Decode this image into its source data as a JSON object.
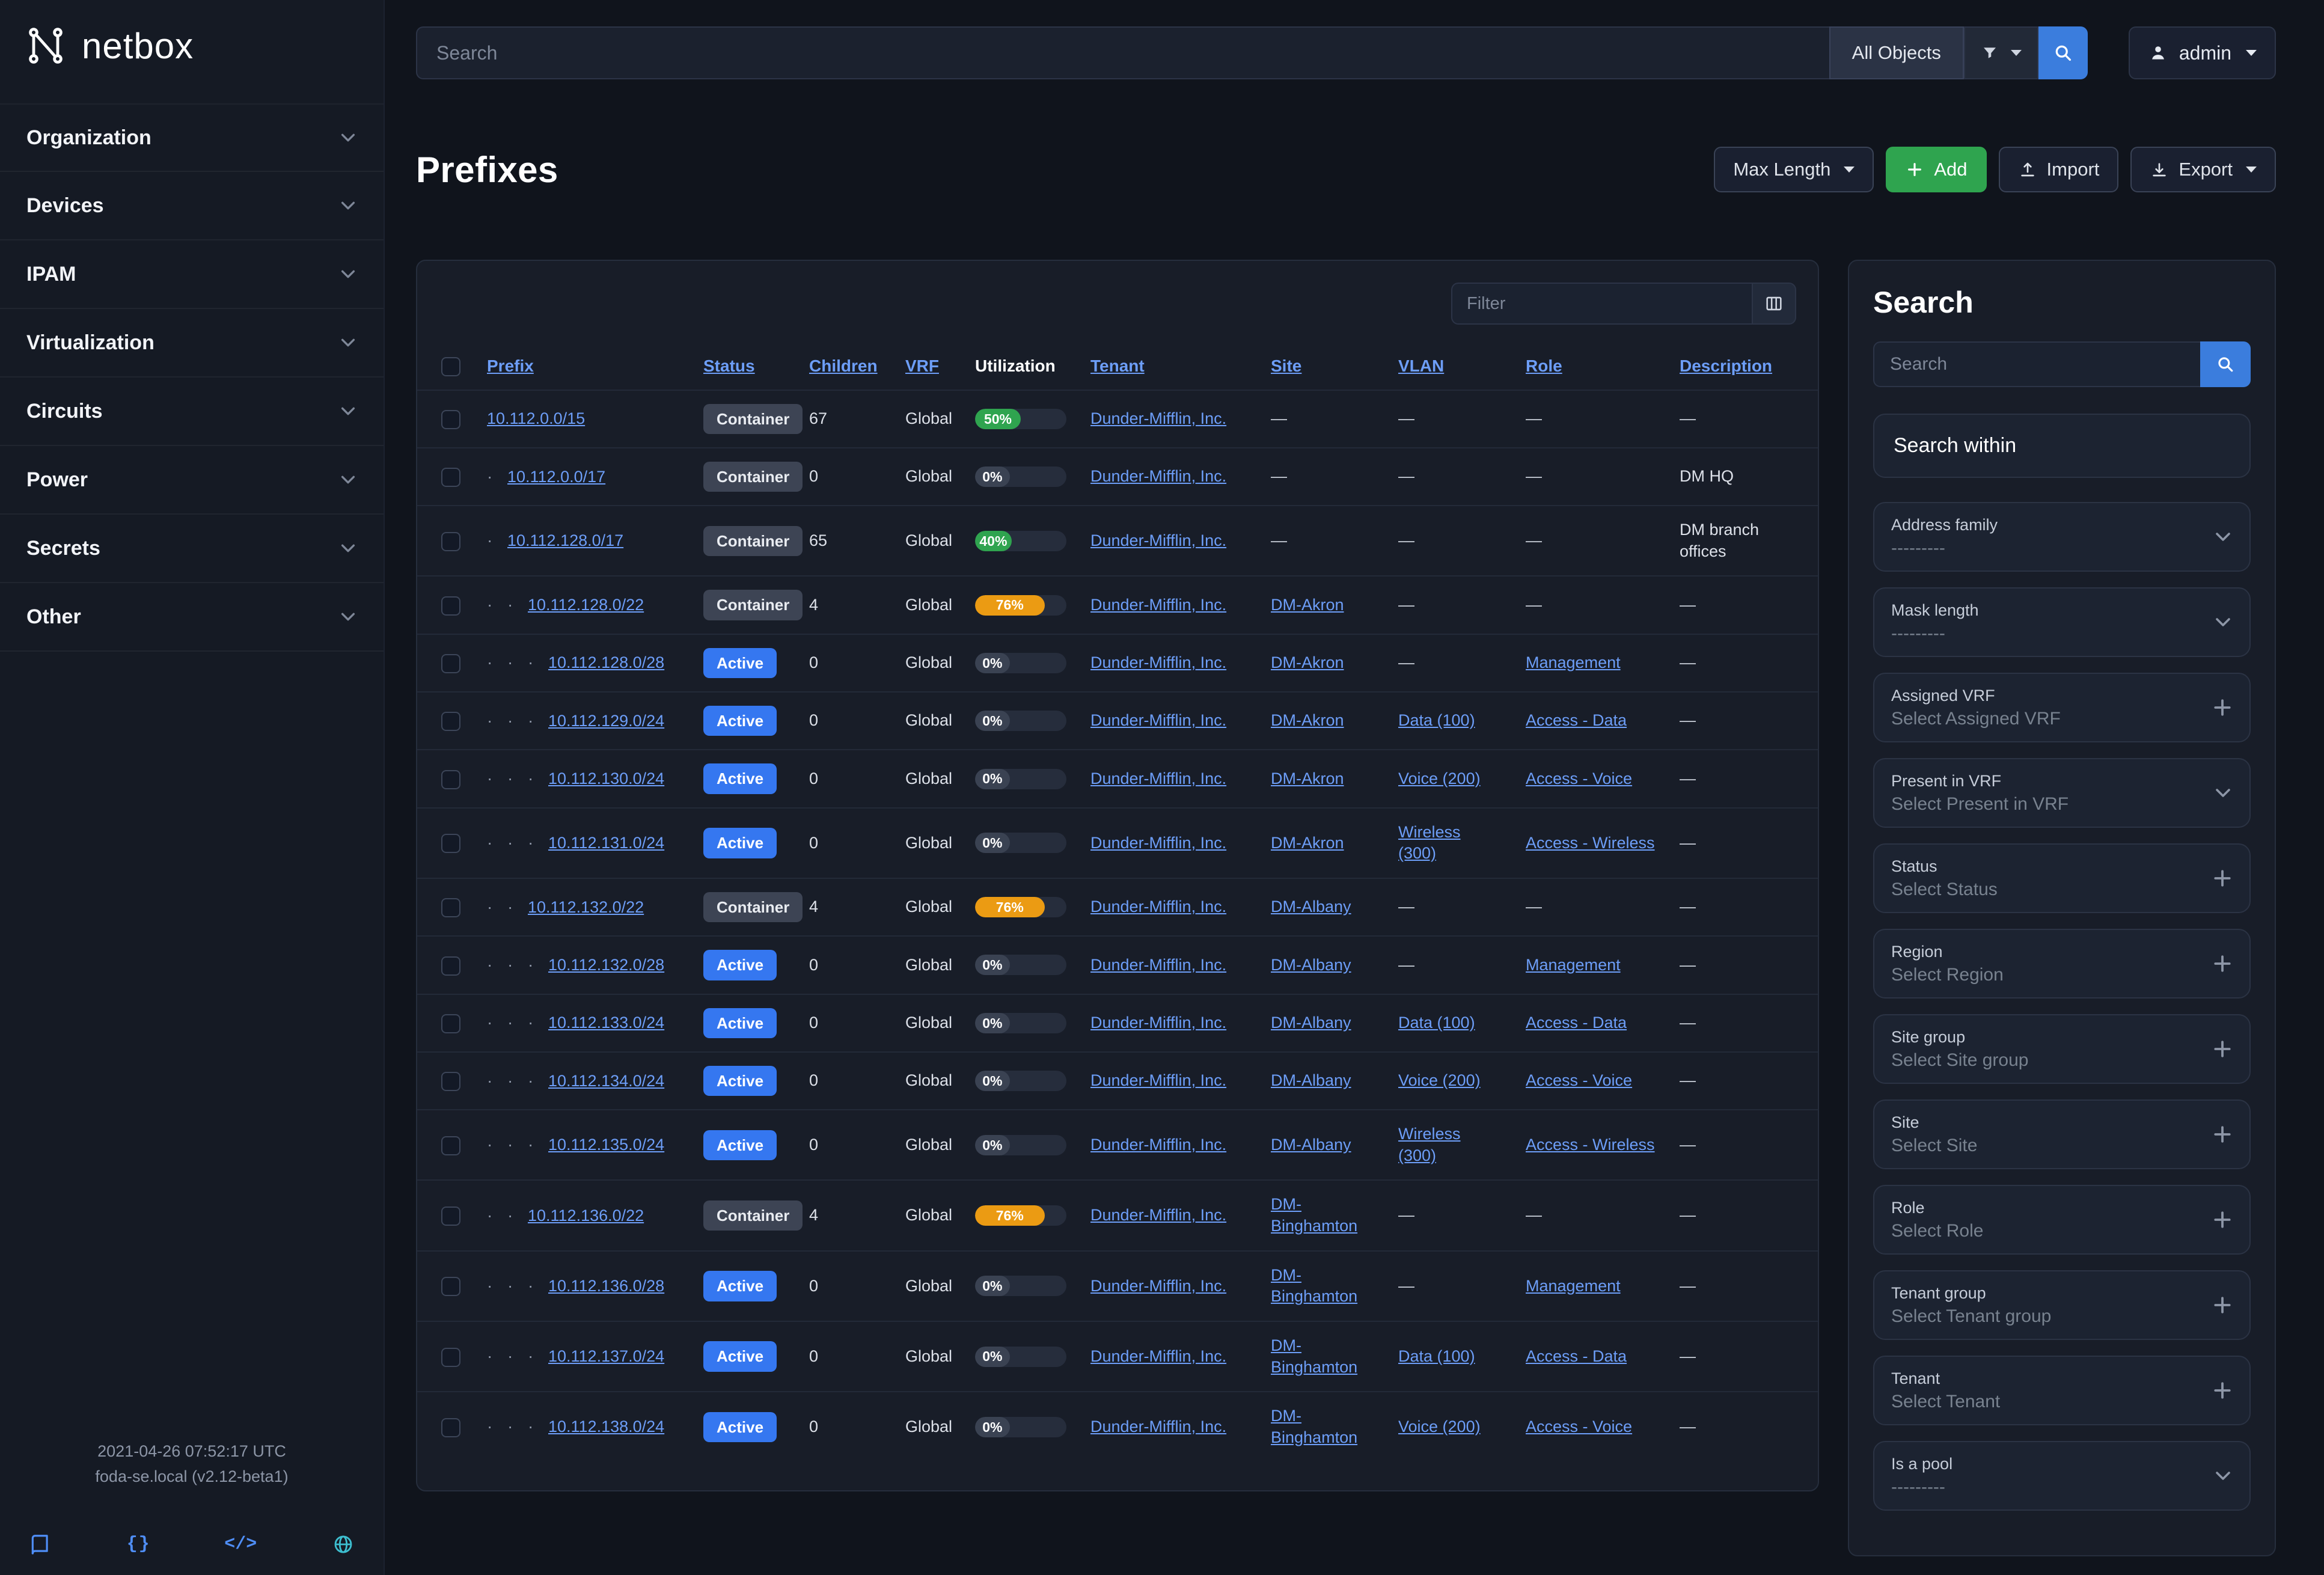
{
  "colors": {
    "accent_blue": "#3b7ddd",
    "link": "#6d9ef8",
    "green": "#2fa44f",
    "orange": "#eb9b13",
    "badge_blue": "#3577f0",
    "badge_gray": "#3d4454"
  },
  "sidebar": {
    "brand": "netbox",
    "items": [
      {
        "label": "Organization"
      },
      {
        "label": "Devices"
      },
      {
        "label": "IPAM"
      },
      {
        "label": "Virtualization"
      },
      {
        "label": "Circuits"
      },
      {
        "label": "Power"
      },
      {
        "label": "Secrets"
      },
      {
        "label": "Other"
      }
    ],
    "footer": {
      "timestamp": "2021-04-26 07:52:17 UTC",
      "version": "foda-se.local (v2.12-beta1)"
    }
  },
  "topbar": {
    "search_placeholder": "Search",
    "scope_label": "All Objects",
    "user_label": "admin"
  },
  "page": {
    "title": "Prefixes",
    "actions": {
      "max_length": "Max Length",
      "add": "Add",
      "import": "Import",
      "export": "Export"
    }
  },
  "table": {
    "filter_placeholder": "Filter",
    "columns": [
      {
        "key": "prefix",
        "label": "Prefix",
        "sortable": true
      },
      {
        "key": "status",
        "label": "Status",
        "sortable": true
      },
      {
        "key": "children",
        "label": "Children",
        "sortable": true
      },
      {
        "key": "vrf",
        "label": "VRF",
        "sortable": true
      },
      {
        "key": "util",
        "label": "Utilization",
        "sortable": false
      },
      {
        "key": "tenant",
        "label": "Tenant",
        "sortable": true
      },
      {
        "key": "site",
        "label": "Site",
        "sortable": true
      },
      {
        "key": "vlan",
        "label": "VLAN",
        "sortable": true
      },
      {
        "key": "role",
        "label": "Role",
        "sortable": true
      },
      {
        "key": "desc",
        "label": "Description",
        "sortable": true
      }
    ],
    "rows": [
      {
        "depth": 0,
        "prefix": "10.112.0.0/15",
        "status": "Container",
        "children": "67",
        "vrf": "Global",
        "util": {
          "label": "50%",
          "width": 50,
          "color": "green"
        },
        "tenant": "Dunder-Mifflin, Inc.",
        "site": "—",
        "vlan": "—",
        "role": "—",
        "desc": "—"
      },
      {
        "depth": 1,
        "prefix": "10.112.0.0/17",
        "status": "Container",
        "children": "0",
        "vrf": "Global",
        "util": {
          "label": "0%",
          "width": 38,
          "color": "gray"
        },
        "tenant": "Dunder-Mifflin, Inc.",
        "site": "—",
        "vlan": "—",
        "role": "—",
        "desc": "DM HQ"
      },
      {
        "depth": 1,
        "prefix": "10.112.128.0/17",
        "status": "Container",
        "children": "65",
        "vrf": "Global",
        "util": {
          "label": "40%",
          "width": 40,
          "color": "green"
        },
        "tenant": "Dunder-Mifflin, Inc.",
        "site": "—",
        "vlan": "—",
        "role": "—",
        "desc": "DM branch offices"
      },
      {
        "depth": 2,
        "prefix": "10.112.128.0/22",
        "status": "Container",
        "children": "4",
        "vrf": "Global",
        "util": {
          "label": "76%",
          "width": 76,
          "color": "orange"
        },
        "tenant": "Dunder-Mifflin, Inc.",
        "site": "DM-Akron",
        "vlan": "—",
        "role": "—",
        "desc": "—"
      },
      {
        "depth": 3,
        "prefix": "10.112.128.0/28",
        "status": "Active",
        "children": "0",
        "vrf": "Global",
        "util": {
          "label": "0%",
          "width": 38,
          "color": "gray"
        },
        "tenant": "Dunder-Mifflin, Inc.",
        "site": "DM-Akron",
        "vlan": "—",
        "role": "Management",
        "desc": "—"
      },
      {
        "depth": 3,
        "prefix": "10.112.129.0/24",
        "status": "Active",
        "children": "0",
        "vrf": "Global",
        "util": {
          "label": "0%",
          "width": 38,
          "color": "gray"
        },
        "tenant": "Dunder-Mifflin, Inc.",
        "site": "DM-Akron",
        "vlan": "Data (100)",
        "role": "Access - Data",
        "desc": "—"
      },
      {
        "depth": 3,
        "prefix": "10.112.130.0/24",
        "status": "Active",
        "children": "0",
        "vrf": "Global",
        "util": {
          "label": "0%",
          "width": 38,
          "color": "gray"
        },
        "tenant": "Dunder-Mifflin, Inc.",
        "site": "DM-Akron",
        "vlan": "Voice (200)",
        "role": "Access - Voice",
        "desc": "—"
      },
      {
        "depth": 3,
        "prefix": "10.112.131.0/24",
        "status": "Active",
        "children": "0",
        "vrf": "Global",
        "util": {
          "label": "0%",
          "width": 38,
          "color": "gray"
        },
        "tenant": "Dunder-Mifflin, Inc.",
        "site": "DM-Akron",
        "vlan": "Wireless (300)",
        "role": "Access - Wireless",
        "desc": "—"
      },
      {
        "depth": 2,
        "prefix": "10.112.132.0/22",
        "status": "Container",
        "children": "4",
        "vrf": "Global",
        "util": {
          "label": "76%",
          "width": 76,
          "color": "orange"
        },
        "tenant": "Dunder-Mifflin, Inc.",
        "site": "DM-Albany",
        "vlan": "—",
        "role": "—",
        "desc": "—"
      },
      {
        "depth": 3,
        "prefix": "10.112.132.0/28",
        "status": "Active",
        "children": "0",
        "vrf": "Global",
        "util": {
          "label": "0%",
          "width": 38,
          "color": "gray"
        },
        "tenant": "Dunder-Mifflin, Inc.",
        "site": "DM-Albany",
        "vlan": "—",
        "role": "Management",
        "desc": "—"
      },
      {
        "depth": 3,
        "prefix": "10.112.133.0/24",
        "status": "Active",
        "children": "0",
        "vrf": "Global",
        "util": {
          "label": "0%",
          "width": 38,
          "color": "gray"
        },
        "tenant": "Dunder-Mifflin, Inc.",
        "site": "DM-Albany",
        "vlan": "Data (100)",
        "role": "Access - Data",
        "desc": "—"
      },
      {
        "depth": 3,
        "prefix": "10.112.134.0/24",
        "status": "Active",
        "children": "0",
        "vrf": "Global",
        "util": {
          "label": "0%",
          "width": 38,
          "color": "gray"
        },
        "tenant": "Dunder-Mifflin, Inc.",
        "site": "DM-Albany",
        "vlan": "Voice (200)",
        "role": "Access - Voice",
        "desc": "—"
      },
      {
        "depth": 3,
        "prefix": "10.112.135.0/24",
        "status": "Active",
        "children": "0",
        "vrf": "Global",
        "util": {
          "label": "0%",
          "width": 38,
          "color": "gray"
        },
        "tenant": "Dunder-Mifflin, Inc.",
        "site": "DM-Albany",
        "vlan": "Wireless (300)",
        "role": "Access - Wireless",
        "desc": "—"
      },
      {
        "depth": 2,
        "prefix": "10.112.136.0/22",
        "status": "Container",
        "children": "4",
        "vrf": "Global",
        "util": {
          "label": "76%",
          "width": 76,
          "color": "orange"
        },
        "tenant": "Dunder-Mifflin, Inc.",
        "site": "DM-Binghamton",
        "vlan": "—",
        "role": "—",
        "desc": "—"
      },
      {
        "depth": 3,
        "prefix": "10.112.136.0/28",
        "status": "Active",
        "children": "0",
        "vrf": "Global",
        "util": {
          "label": "0%",
          "width": 38,
          "color": "gray"
        },
        "tenant": "Dunder-Mifflin, Inc.",
        "site": "DM-Binghamton",
        "vlan": "—",
        "role": "Management",
        "desc": "—"
      },
      {
        "depth": 3,
        "prefix": "10.112.137.0/24",
        "status": "Active",
        "children": "0",
        "vrf": "Global",
        "util": {
          "label": "0%",
          "width": 38,
          "color": "gray"
        },
        "tenant": "Dunder-Mifflin, Inc.",
        "site": "DM-Binghamton",
        "vlan": "Data (100)",
        "role": "Access - Data",
        "desc": "—"
      },
      {
        "depth": 3,
        "prefix": "10.112.138.0/24",
        "status": "Active",
        "children": "0",
        "vrf": "Global",
        "util": {
          "label": "0%",
          "width": 38,
          "color": "gray"
        },
        "tenant": "Dunder-Mifflin, Inc.",
        "site": "DM-Binghamton",
        "vlan": "Voice (200)",
        "role": "Access - Voice",
        "desc": "—"
      }
    ]
  },
  "filters": {
    "title": "Search",
    "search_placeholder": "Search",
    "search_within": "Search within",
    "fields": [
      {
        "label": "Address family",
        "value": "---------",
        "control": "select"
      },
      {
        "label": "Mask length",
        "value": "---------",
        "control": "select"
      },
      {
        "label": "Assigned VRF",
        "value": "Select Assigned VRF",
        "control": "add"
      },
      {
        "label": "Present in VRF",
        "value": "Select Present in VRF",
        "control": "select"
      },
      {
        "label": "Status",
        "value": "Select Status",
        "control": "add"
      },
      {
        "label": "Region",
        "value": "Select Region",
        "control": "add"
      },
      {
        "label": "Site group",
        "value": "Select Site group",
        "control": "add"
      },
      {
        "label": "Site",
        "value": "Select Site",
        "control": "add"
      },
      {
        "label": "Role",
        "value": "Select Role",
        "control": "add"
      },
      {
        "label": "Tenant group",
        "value": "Select Tenant group",
        "control": "add"
      },
      {
        "label": "Tenant",
        "value": "Select Tenant",
        "control": "add"
      },
      {
        "label": "Is a pool",
        "value": "---------",
        "control": "select"
      }
    ]
  }
}
